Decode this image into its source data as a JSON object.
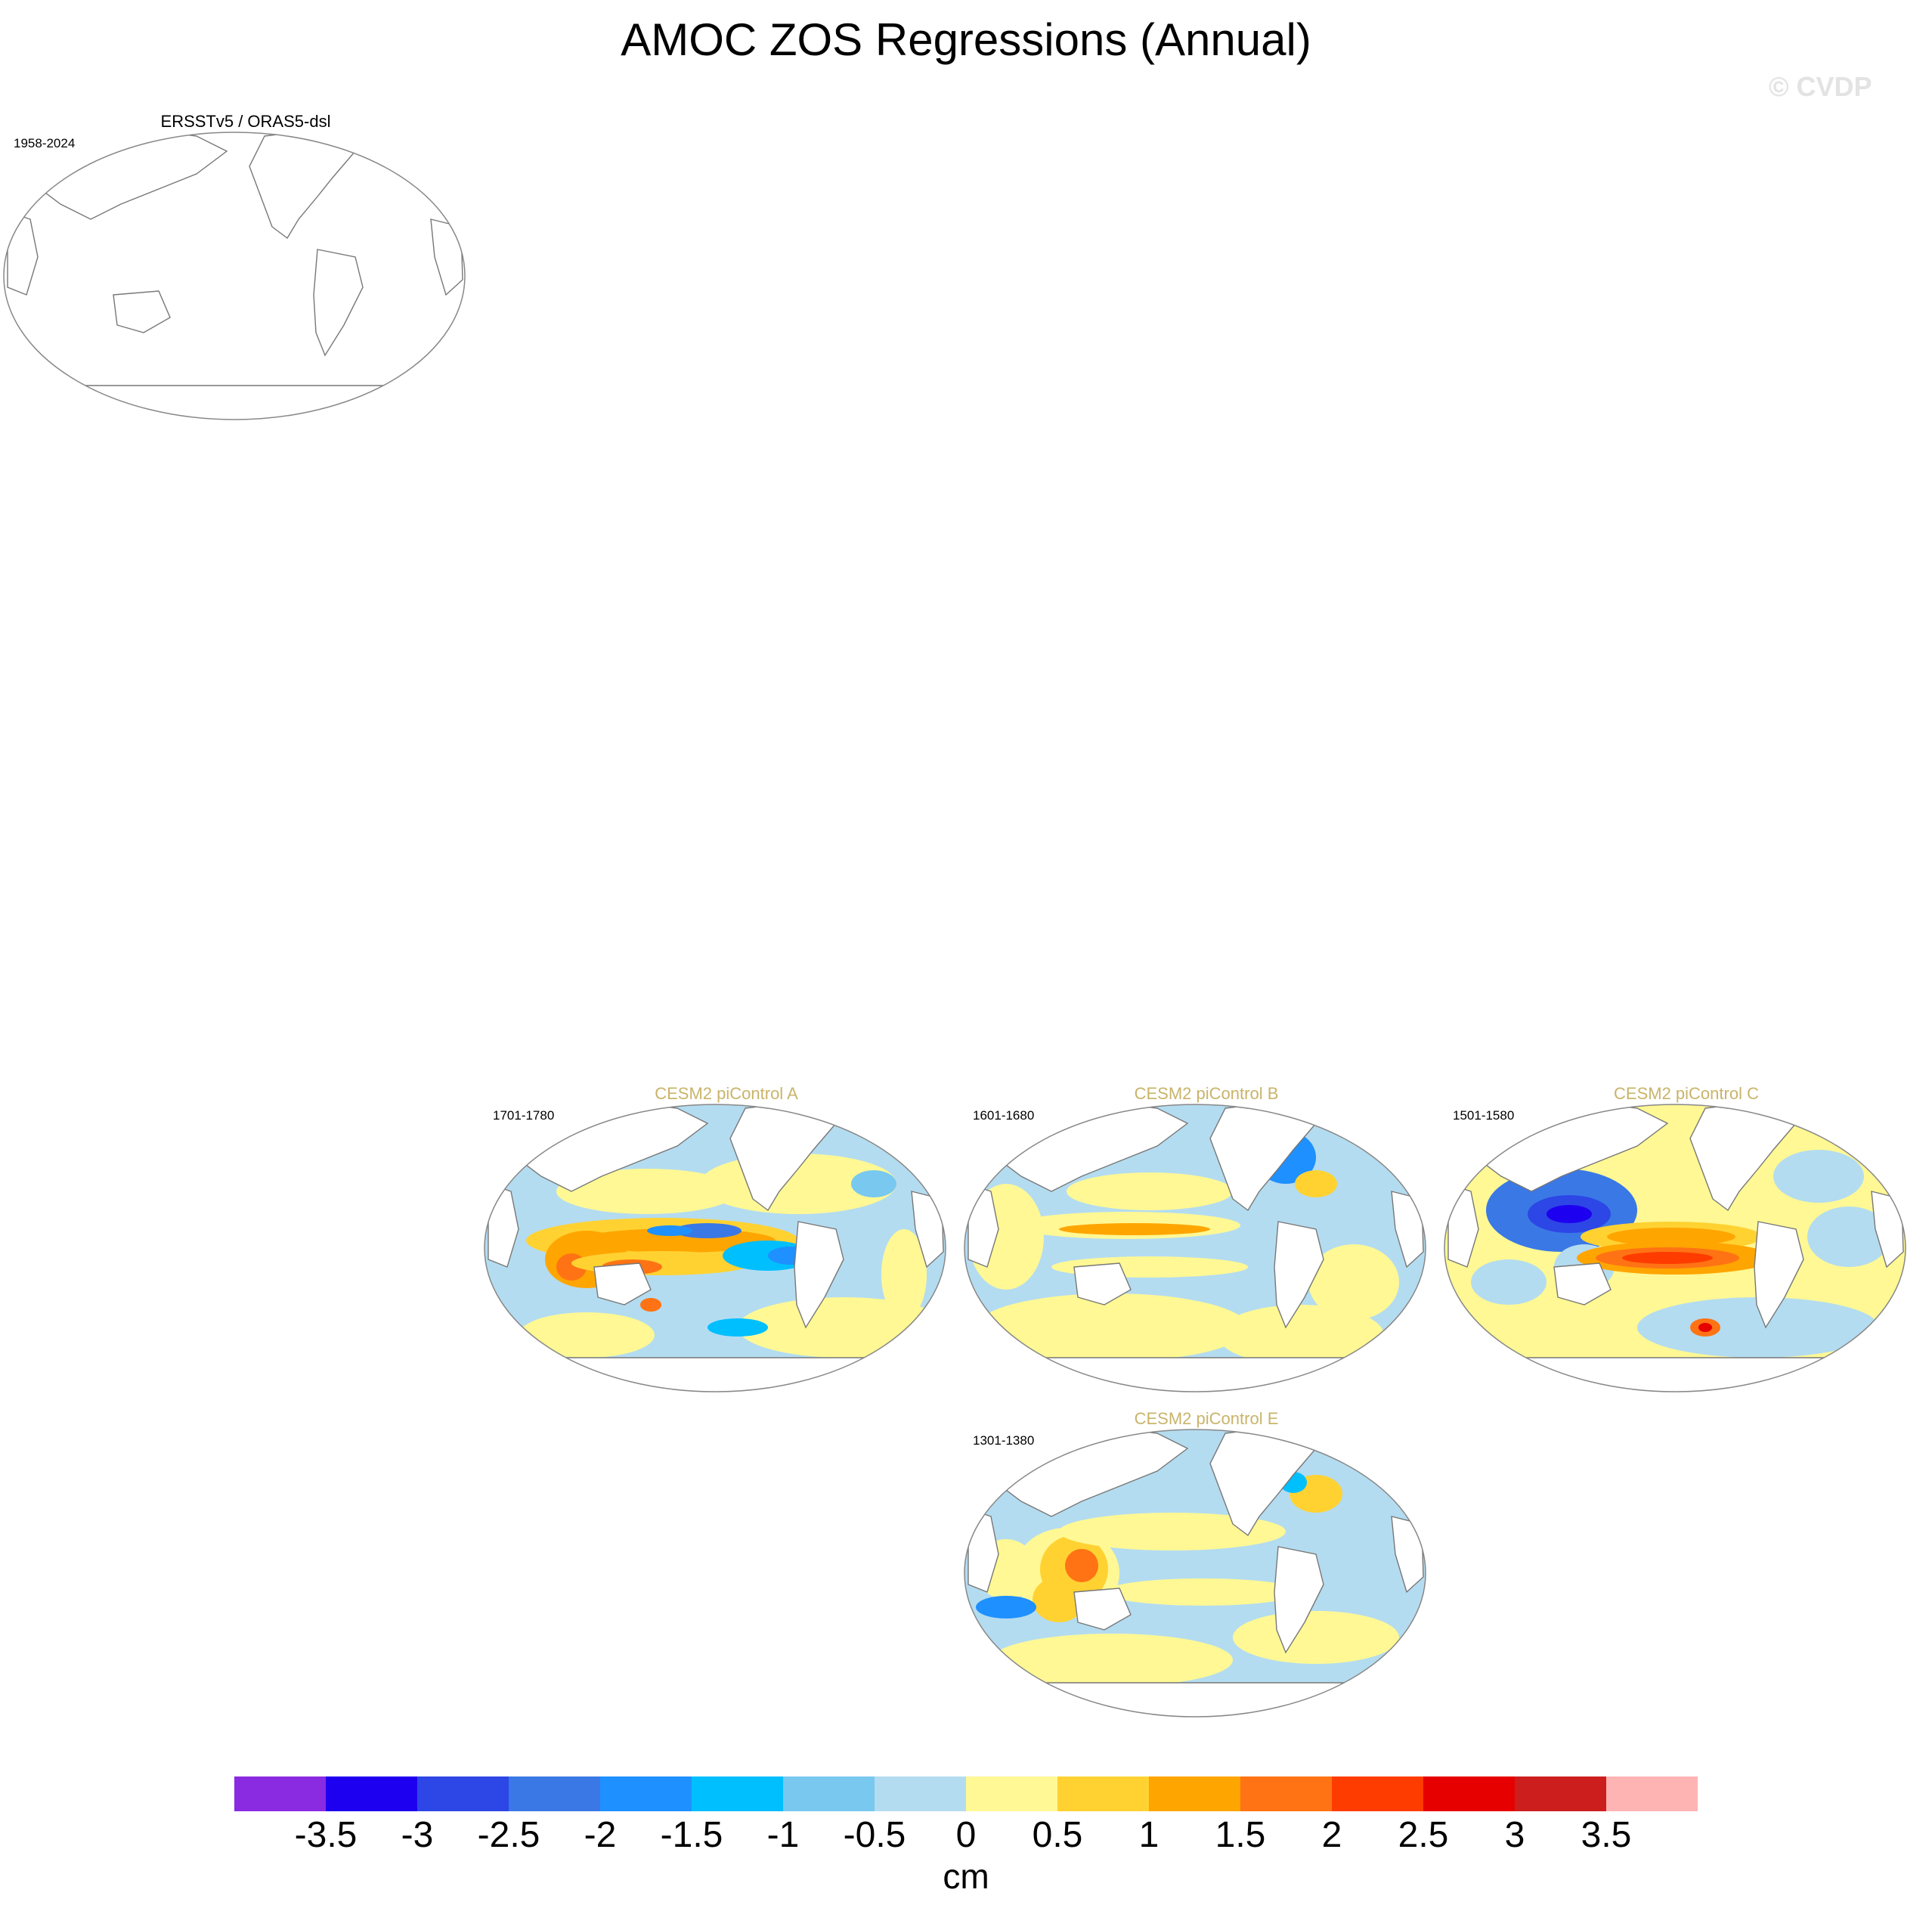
{
  "title": "AMOC ZOS Regressions (Annual)",
  "watermark": "© CVDP",
  "panels": [
    {
      "name": "ERSSTv5 / ORAS5-dsl",
      "years": "1958-2024",
      "title_color": "#000000",
      "pattern": "empty"
    },
    {
      "name": "CESM2 piControl A",
      "years": "1701-1780",
      "title_color": "#c9b46a",
      "pattern": "A"
    },
    {
      "name": "CESM2 piControl B",
      "years": "1601-1680",
      "title_color": "#c9b46a",
      "pattern": "B"
    },
    {
      "name": "CESM2 piControl C",
      "years": "1501-1580",
      "title_color": "#c9b46a",
      "pattern": "C"
    },
    {
      "name": "CESM2 piControl E",
      "years": "1301-1380",
      "title_color": "#c9b46a",
      "pattern": "E"
    }
  ],
  "colorbar": {
    "colors": [
      "#8a2be2",
      "#1e00f0",
      "#2d46e6",
      "#3a78e6",
      "#1e90ff",
      "#00bfff",
      "#78c8f0",
      "#b4dcf0",
      "#fff894",
      "#ffd232",
      "#ffa500",
      "#ff7314",
      "#ff3c00",
      "#e60000",
      "#cd1e1e",
      "#ffb4b4"
    ],
    "labels": [
      "-3.5",
      "-3",
      "-2.5",
      "-2",
      "-1.5",
      "-1",
      "-0.5",
      "0",
      "0.5",
      "1",
      "1.5",
      "2",
      "2.5",
      "3",
      "3.5"
    ],
    "units": "cm"
  }
}
